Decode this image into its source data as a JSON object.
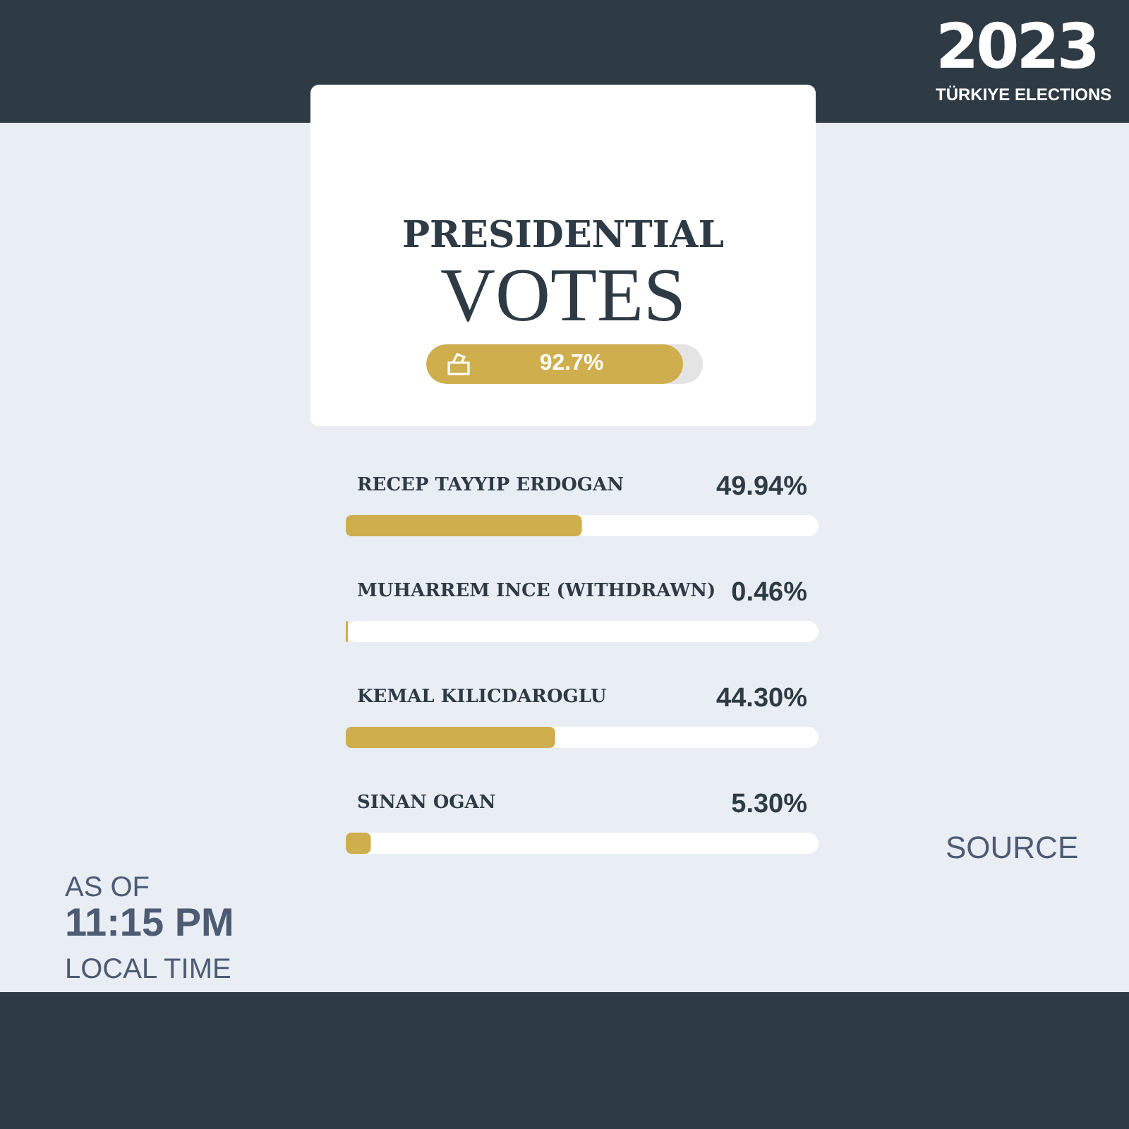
{
  "chart_data": {
    "type": "bar",
    "orientation": "horizontal",
    "title": "PRESIDENTIAL",
    "subtitle": "VOTES",
    "categories": [
      "RECEP TAYYIP ERDOGAN",
      "MUHARREM INCE (WITHDRAWN)",
      "KEMAL KILICDAROGLU",
      "SINAN OGAN"
    ],
    "values": [
      49.94,
      0.46,
      44.3,
      5.3
    ],
    "value_labels": [
      "49.94%",
      "0.46%",
      "44.30%",
      "5.30%"
    ],
    "color": "#cfae4e",
    "xlim": [
      0,
      100
    ],
    "grid": false,
    "annotations": [
      "2023",
      "TÜRKIYE ELECTIONS",
      "92.7%",
      "AS OF",
      "11:15 PM",
      "LOCAL TIME",
      "SOURCE"
    ]
  }
}
